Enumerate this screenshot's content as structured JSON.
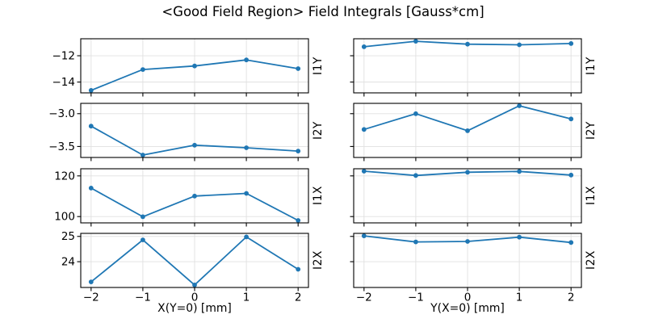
{
  "chart_data": {
    "type": "line",
    "title": "<Good Field Region> Field Integrals [Gauss*cm]",
    "grid": true,
    "legend_position": "none",
    "marker": "circle",
    "x": [
      -2,
      -1,
      0,
      1,
      2
    ],
    "xlim": [
      -2.2,
      2.2
    ],
    "xticks": [
      {
        "v": -2,
        "label": "−2"
      },
      {
        "v": -1,
        "label": "−1"
      },
      {
        "v": 0,
        "label": "0"
      },
      {
        "v": 1,
        "label": "1"
      },
      {
        "v": 2,
        "label": "2"
      }
    ],
    "columns": [
      {
        "xlabel": "X(Y=0) [mm]"
      },
      {
        "xlabel": "Y(X=0) [mm]"
      }
    ],
    "rows": [
      {
        "ylabel": "I1Y",
        "ylim": [
          -14.82,
          -10.71
        ],
        "yticks": [
          {
            "v": -12,
            "label": "−12"
          },
          {
            "v": -14,
            "label": "−14"
          }
        ],
        "series": [
          {
            "name": "I1Y vs X(Y=0)",
            "values": [
              -14.63,
              -13.05,
              -12.78,
              -12.32,
              -12.98
            ]
          },
          {
            "name": "I1Y vs Y(X=0)",
            "values": [
              -11.32,
              -10.9,
              -11.12,
              -11.17,
              -11.07
            ]
          }
        ]
      },
      {
        "ylabel": "I2Y",
        "ylim": [
          -3.667,
          -2.843
        ],
        "yticks": [
          {
            "v": -3.0,
            "label": "−3.0"
          },
          {
            "v": -3.5,
            "label": "−3.5"
          }
        ],
        "series": [
          {
            "name": "I2Y vs X(Y=0)",
            "values": [
              -3.19,
              -3.63,
              -3.48,
              -3.52,
              -3.57
            ]
          },
          {
            "name": "I2Y vs Y(X=0)",
            "values": [
              -3.24,
              -3.0,
              -3.26,
              -2.88,
              -3.08
            ]
          }
        ]
      },
      {
        "ylabel": "I1X",
        "ylim": [
          96.9,
          123.5
        ],
        "yticks": [
          {
            "v": 120,
            "label": "120"
          },
          {
            "v": 100,
            "label": "100"
          }
        ],
        "series": [
          {
            "name": "I1X vs X(Y=0)",
            "values": [
              114.0,
              99.9,
              110.1,
              111.4,
              98.1
            ]
          },
          {
            "name": "I1X vs Y(X=0)",
            "values": [
              122.3,
              120.2,
              121.8,
              122.2,
              120.4
            ]
          }
        ]
      },
      {
        "ylabel": "I2X",
        "ylim": [
          22.98,
          25.12
        ],
        "yticks": [
          {
            "v": 25,
            "label": "25"
          },
          {
            "v": 24,
            "label": "24"
          }
        ],
        "series": [
          {
            "name": "I2X vs X(Y=0)",
            "values": [
              23.2,
              24.86,
              23.08,
              24.98,
              23.7
            ]
          },
          {
            "name": "I2X vs Y(X=0)",
            "values": [
              25.02,
              24.78,
              24.8,
              24.97,
              24.76
            ]
          }
        ]
      }
    ],
    "colors": {
      "line": "#1f77b4",
      "grid": "#e0e0e0",
      "spine": "#000000",
      "text": "#000000",
      "background": "#ffffff"
    }
  }
}
